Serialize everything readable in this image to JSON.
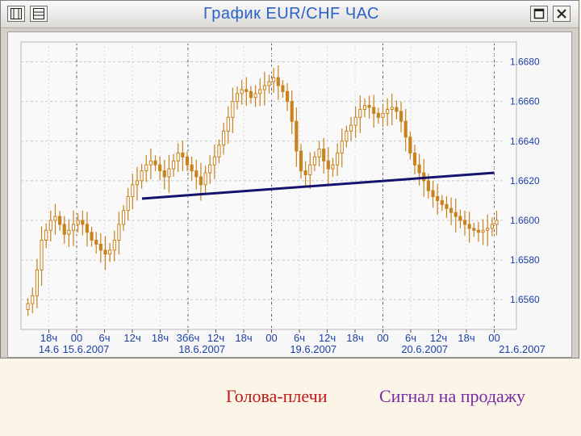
{
  "window": {
    "title": "График EUR/CHF ЧАС",
    "buttons": [
      "window-menu",
      "restore",
      "maximize",
      "close"
    ]
  },
  "caption": {
    "left": "Голова-плечи",
    "right": "Сигнал на продажу"
  },
  "colors": {
    "candle": "#c8821e",
    "neckline": "#14146e",
    "axis_text": "#1a3fa8",
    "grid_h": "#c8c8c8",
    "grid_v": "#606060"
  },
  "chart_data": {
    "type": "candlestick",
    "title": "График EUR/CHF ЧАС",
    "ylim": [
      1.6545,
      1.669
    ],
    "y_ticks": [
      "1.6680",
      "1.6660",
      "1.6640",
      "1.6620",
      "1.6600",
      "1.6580",
      "1.6560"
    ],
    "x_hour_ticks": [
      {
        "label": "18ч",
        "t": 0
      },
      {
        "label": "00",
        "t": 6
      },
      {
        "label": "6ч",
        "t": 12
      },
      {
        "label": "12ч",
        "t": 18
      },
      {
        "label": "18ч",
        "t": 24
      },
      {
        "label": "3б6ч",
        "t": 30
      },
      {
        "label": "12ч",
        "t": 36
      },
      {
        "label": "18ч",
        "t": 42
      },
      {
        "label": "00",
        "t": 48
      },
      {
        "label": "6ч",
        "t": 54
      },
      {
        "label": "12ч",
        "t": 60
      },
      {
        "label": "18ч",
        "t": 66
      },
      {
        "label": "00",
        "t": 72
      },
      {
        "label": "6ч",
        "t": 78
      },
      {
        "label": "12ч",
        "t": 84
      },
      {
        "label": "18ч",
        "t": 90
      },
      {
        "label": "00",
        "t": 96
      }
    ],
    "x_date_labels": [
      {
        "label": "14.6",
        "t": 0
      },
      {
        "label": "15.6.2007",
        "t": 8
      },
      {
        "label": "18.6.2007",
        "t": 33
      },
      {
        "label": "19.6.2007",
        "t": 57
      },
      {
        "label": "20.6.2007",
        "t": 81
      },
      {
        "label": "21.6.2007",
        "t": 102
      }
    ],
    "date_separators_t": [
      6,
      30,
      48,
      72,
      96
    ],
    "xlim": [
      -6,
      98
    ],
    "neckline": {
      "t": [
        -6,
        96
      ],
      "y": [
        1.6611,
        1.6624
      ]
    },
    "closes": [
      1.6558,
      1.6562,
      1.6575,
      1.659,
      1.6595,
      1.66,
      1.6602,
      1.6598,
      1.6593,
      1.6595,
      1.6598,
      1.66,
      1.6598,
      1.6594,
      1.659,
      1.6588,
      1.6585,
      1.6583,
      1.6585,
      1.659,
      1.6598,
      1.6605,
      1.6612,
      1.6618,
      1.662,
      1.6625,
      1.6628,
      1.663,
      1.6628,
      1.6625,
      1.6622,
      1.6626,
      1.663,
      1.6634,
      1.6632,
      1.6628,
      1.6625,
      1.6622,
      1.6618,
      1.6624,
      1.6628,
      1.6632,
      1.6638,
      1.6645,
      1.6652,
      1.666,
      1.6664,
      1.6666,
      1.6665,
      1.6662,
      1.6664,
      1.6666,
      1.6668,
      1.667,
      1.6672,
      1.6668,
      1.6665,
      1.666,
      1.665,
      1.6635,
      1.6625,
      1.6623,
      1.6628,
      1.6632,
      1.6636,
      1.663,
      1.6626,
      1.6628,
      1.6634,
      1.664,
      1.6645,
      1.6648,
      1.6652,
      1.6656,
      1.6658,
      1.6657,
      1.6654,
      1.6652,
      1.6654,
      1.6656,
      1.6657,
      1.6655,
      1.665,
      1.6642,
      1.6634,
      1.6628,
      1.6624,
      1.662,
      1.6615,
      1.6612,
      1.661,
      1.6608,
      1.6606,
      1.6604,
      1.6602,
      1.66,
      1.6598,
      1.6596,
      1.6595,
      1.6594,
      1.6595,
      1.6596,
      1.6598,
      1.66
    ]
  }
}
